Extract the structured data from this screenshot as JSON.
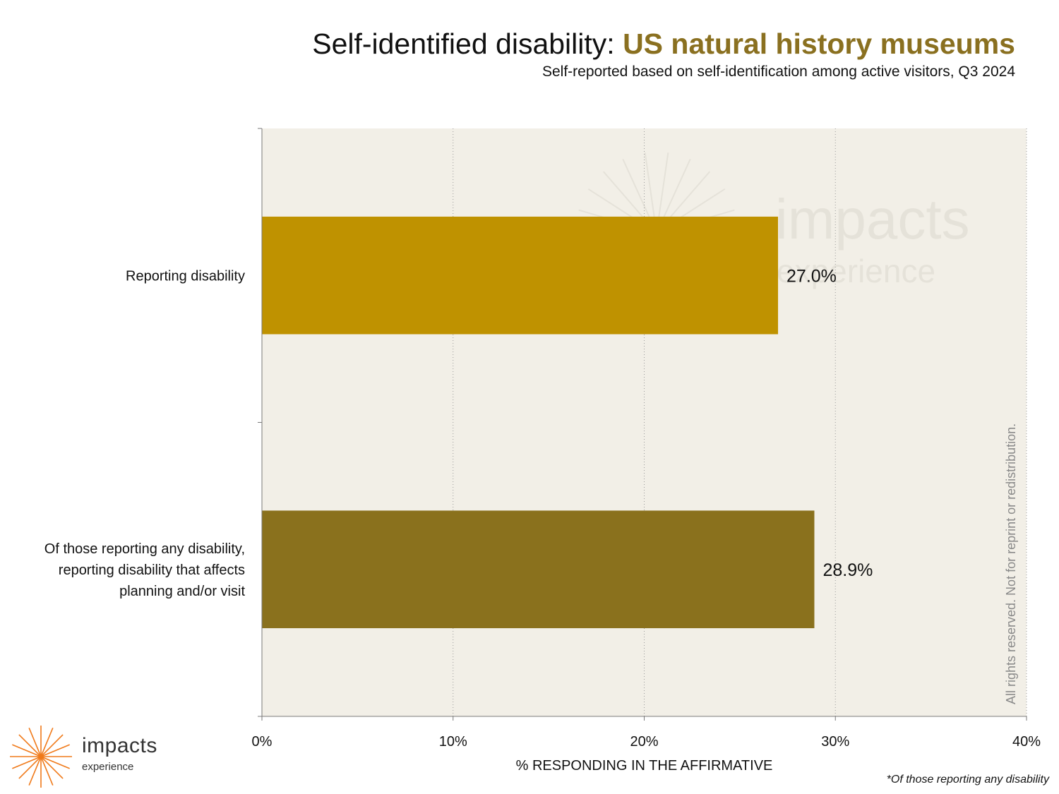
{
  "title": {
    "prefix": "Self-identified disability: ",
    "accent": "US natural history museums",
    "subtitle": "Self-reported based on self-identification among active visitors, Q3 2024"
  },
  "chart_data": {
    "type": "bar",
    "orientation": "horizontal",
    "categories": [
      "Reporting disability",
      "Of those reporting any disability, reporting disability that affects planning and/or visit"
    ],
    "category_lines": [
      [
        "Reporting disability"
      ],
      [
        "Of those reporting any disability,",
        "reporting disability that affects",
        "planning and/or visit"
      ]
    ],
    "values": [
      27.0,
      28.9
    ],
    "value_labels": [
      "27.0%",
      "28.9%"
    ],
    "bar_colors": [
      "#bf9200",
      "#8a711d"
    ],
    "xlabel": "% RESPONDING IN THE AFFIRMATIVE",
    "ylabel": "",
    "xlim": [
      0,
      40
    ],
    "xticks": [
      0,
      10,
      20,
      30,
      40
    ],
    "xtick_labels": [
      "0%",
      "10%",
      "20%",
      "30%",
      "40%"
    ],
    "grid": "vertical-dotted",
    "plot_background": "#f2efe7"
  },
  "footnote": "*Of those reporting any disability",
  "watermark": {
    "word": "impacts",
    "sub": "experience"
  },
  "logo": {
    "word": "impacts",
    "sub": "experience",
    "icon": "sunburst-icon",
    "color": "#f07a1a"
  },
  "copyright": "All rights reserved. Not for reprint or redistribution."
}
